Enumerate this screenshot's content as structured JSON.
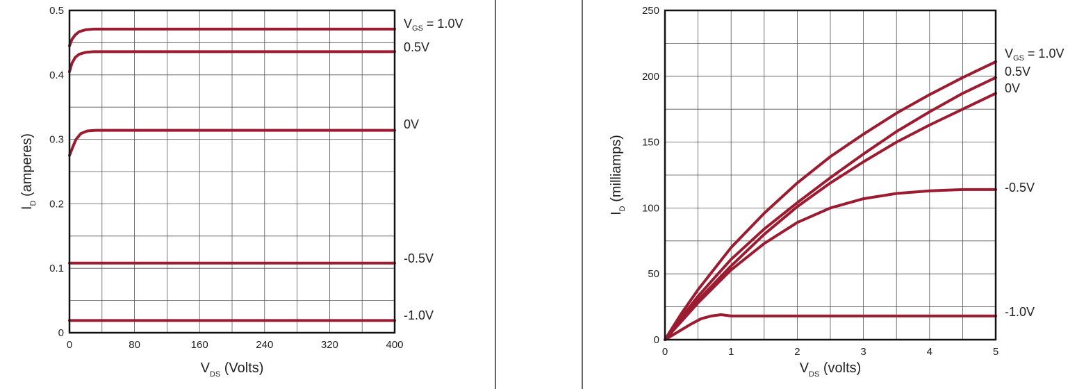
{
  "colors": {
    "curve": "#9b1b30"
  },
  "chart_data": [
    {
      "type": "line",
      "title": "",
      "xlabel": {
        "main": "V",
        "sub": "DS",
        "rest": " (Volts)"
      },
      "ylabel": {
        "main": "I",
        "sub": "D",
        "rest": " (amperes)"
      },
      "xlim": [
        0,
        400
      ],
      "ylim": [
        0,
        0.5
      ],
      "xticks": [
        0,
        80,
        160,
        240,
        320,
        400
      ],
      "xtick_labels": [
        "0",
        "80",
        "160",
        "240",
        "320",
        "400"
      ],
      "yticks": [
        0,
        0.1,
        0.2,
        0.3,
        0.4,
        0.5
      ],
      "ytick_labels": [
        "0",
        "0.1",
        "0.2",
        "0.3",
        "0.4",
        "0.5"
      ],
      "grid_x": [
        0,
        40,
        80,
        120,
        160,
        200,
        240,
        280,
        320,
        360,
        400
      ],
      "grid_y": [
        0,
        0.05,
        0.1,
        0.15,
        0.2,
        0.25,
        0.3,
        0.35,
        0.4,
        0.45,
        0.5
      ],
      "grid": true,
      "series": [
        {
          "label": {
            "main": "V",
            "sub": "GS",
            "rest": " = 1.0V"
          },
          "points": [
            [
              0,
              0.445
            ],
            [
              3,
              0.455
            ],
            [
              7,
              0.462
            ],
            [
              12,
              0.467
            ],
            [
              20,
              0.47
            ],
            [
              30,
              0.471
            ],
            [
              400,
              0.471
            ]
          ]
        },
        {
          "label": {
            "main": "",
            "sub": "",
            "rest": "0.5V"
          },
          "points": [
            [
              0,
              0.405
            ],
            [
              3,
              0.418
            ],
            [
              7,
              0.427
            ],
            [
              12,
              0.432
            ],
            [
              20,
              0.435
            ],
            [
              30,
              0.436
            ],
            [
              400,
              0.436
            ]
          ]
        },
        {
          "label": {
            "main": "",
            "sub": "",
            "rest": "0V"
          },
          "points": [
            [
              0,
              0.275
            ],
            [
              4,
              0.288
            ],
            [
              8,
              0.3
            ],
            [
              14,
              0.309
            ],
            [
              22,
              0.313
            ],
            [
              32,
              0.314
            ],
            [
              400,
              0.314
            ]
          ]
        },
        {
          "label": {
            "main": "",
            "sub": "",
            "rest": "-0.5V"
          },
          "points": [
            [
              0,
              0.108
            ],
            [
              400,
              0.108
            ]
          ]
        },
        {
          "label": {
            "main": "",
            "sub": "",
            "rest": "-1.0V"
          },
          "points": [
            [
              0,
              0.019
            ],
            [
              400,
              0.019
            ]
          ]
        }
      ]
    },
    {
      "type": "line",
      "title": "",
      "xlabel": {
        "main": "V",
        "sub": "DS",
        "rest": " (volts)"
      },
      "ylabel": {
        "main": "I",
        "sub": "D",
        "rest": " (milliamps)"
      },
      "xlim": [
        0,
        5
      ],
      "ylim": [
        0,
        250
      ],
      "xticks": [
        0,
        1,
        2,
        3,
        4,
        5
      ],
      "xtick_labels": [
        "0",
        "1",
        "2",
        "3",
        "4",
        "5"
      ],
      "yticks": [
        0,
        50,
        100,
        150,
        200,
        250
      ],
      "ytick_labels": [
        "0",
        "50",
        "100",
        "150",
        "200",
        "250"
      ],
      "grid_x": [
        0,
        0.5,
        1,
        1.5,
        2,
        2.5,
        3,
        3.5,
        4,
        4.5,
        5
      ],
      "grid_y": [
        0,
        25,
        50,
        75,
        100,
        125,
        150,
        175,
        200,
        225,
        250
      ],
      "grid": true,
      "series": [
        {
          "label": {
            "main": "V",
            "sub": "GS",
            "rest": " = 1.0V"
          },
          "points": [
            [
              0,
              0
            ],
            [
              0.25,
              20
            ],
            [
              0.5,
              38
            ],
            [
              1,
              70
            ],
            [
              1.5,
              96
            ],
            [
              2,
              119
            ],
            [
              2.5,
              139
            ],
            [
              3,
              156
            ],
            [
              3.5,
              172
            ],
            [
              4,
              186
            ],
            [
              4.5,
              199
            ],
            [
              5,
              211
            ]
          ]
        },
        {
          "label": {
            "main": "",
            "sub": "",
            "rest": "0.5V"
          },
          "points": [
            [
              0,
              0
            ],
            [
              0.25,
              17
            ],
            [
              0.5,
              33
            ],
            [
              1,
              61
            ],
            [
              1.5,
              84
            ],
            [
              2,
              104
            ],
            [
              2.5,
              123
            ],
            [
              3,
              141
            ],
            [
              3.5,
              158
            ],
            [
              4,
              173
            ],
            [
              4.5,
              187
            ],
            [
              5,
              199
            ]
          ]
        },
        {
          "label": {
            "main": "",
            "sub": "",
            "rest": "0V"
          },
          "points": [
            [
              0,
              0
            ],
            [
              0.25,
              15
            ],
            [
              0.5,
              30
            ],
            [
              1,
              56
            ],
            [
              1.5,
              80
            ],
            [
              2,
              101
            ],
            [
              2.5,
              119
            ],
            [
              3,
              135
            ],
            [
              3.5,
              150
            ],
            [
              4,
              163
            ],
            [
              4.5,
              175
            ],
            [
              5,
              187
            ]
          ]
        },
        {
          "label": {
            "main": "",
            "sub": "",
            "rest": "-0.5V"
          },
          "points": [
            [
              0,
              0
            ],
            [
              0.25,
              14
            ],
            [
              0.5,
              28
            ],
            [
              1,
              53
            ],
            [
              1.5,
              73
            ],
            [
              2,
              89
            ],
            [
              2.5,
              100
            ],
            [
              3,
              107
            ],
            [
              3.5,
              111
            ],
            [
              4,
              113
            ],
            [
              4.5,
              114
            ],
            [
              5,
              114
            ]
          ]
        },
        {
          "label": {
            "main": "",
            "sub": "",
            "rest": "-1.0V"
          },
          "points": [
            [
              0,
              0
            ],
            [
              0.2,
              6
            ],
            [
              0.4,
              12
            ],
            [
              0.55,
              16
            ],
            [
              0.7,
              18
            ],
            [
              0.85,
              19
            ],
            [
              1,
              18
            ],
            [
              5,
              18
            ]
          ]
        }
      ]
    }
  ]
}
